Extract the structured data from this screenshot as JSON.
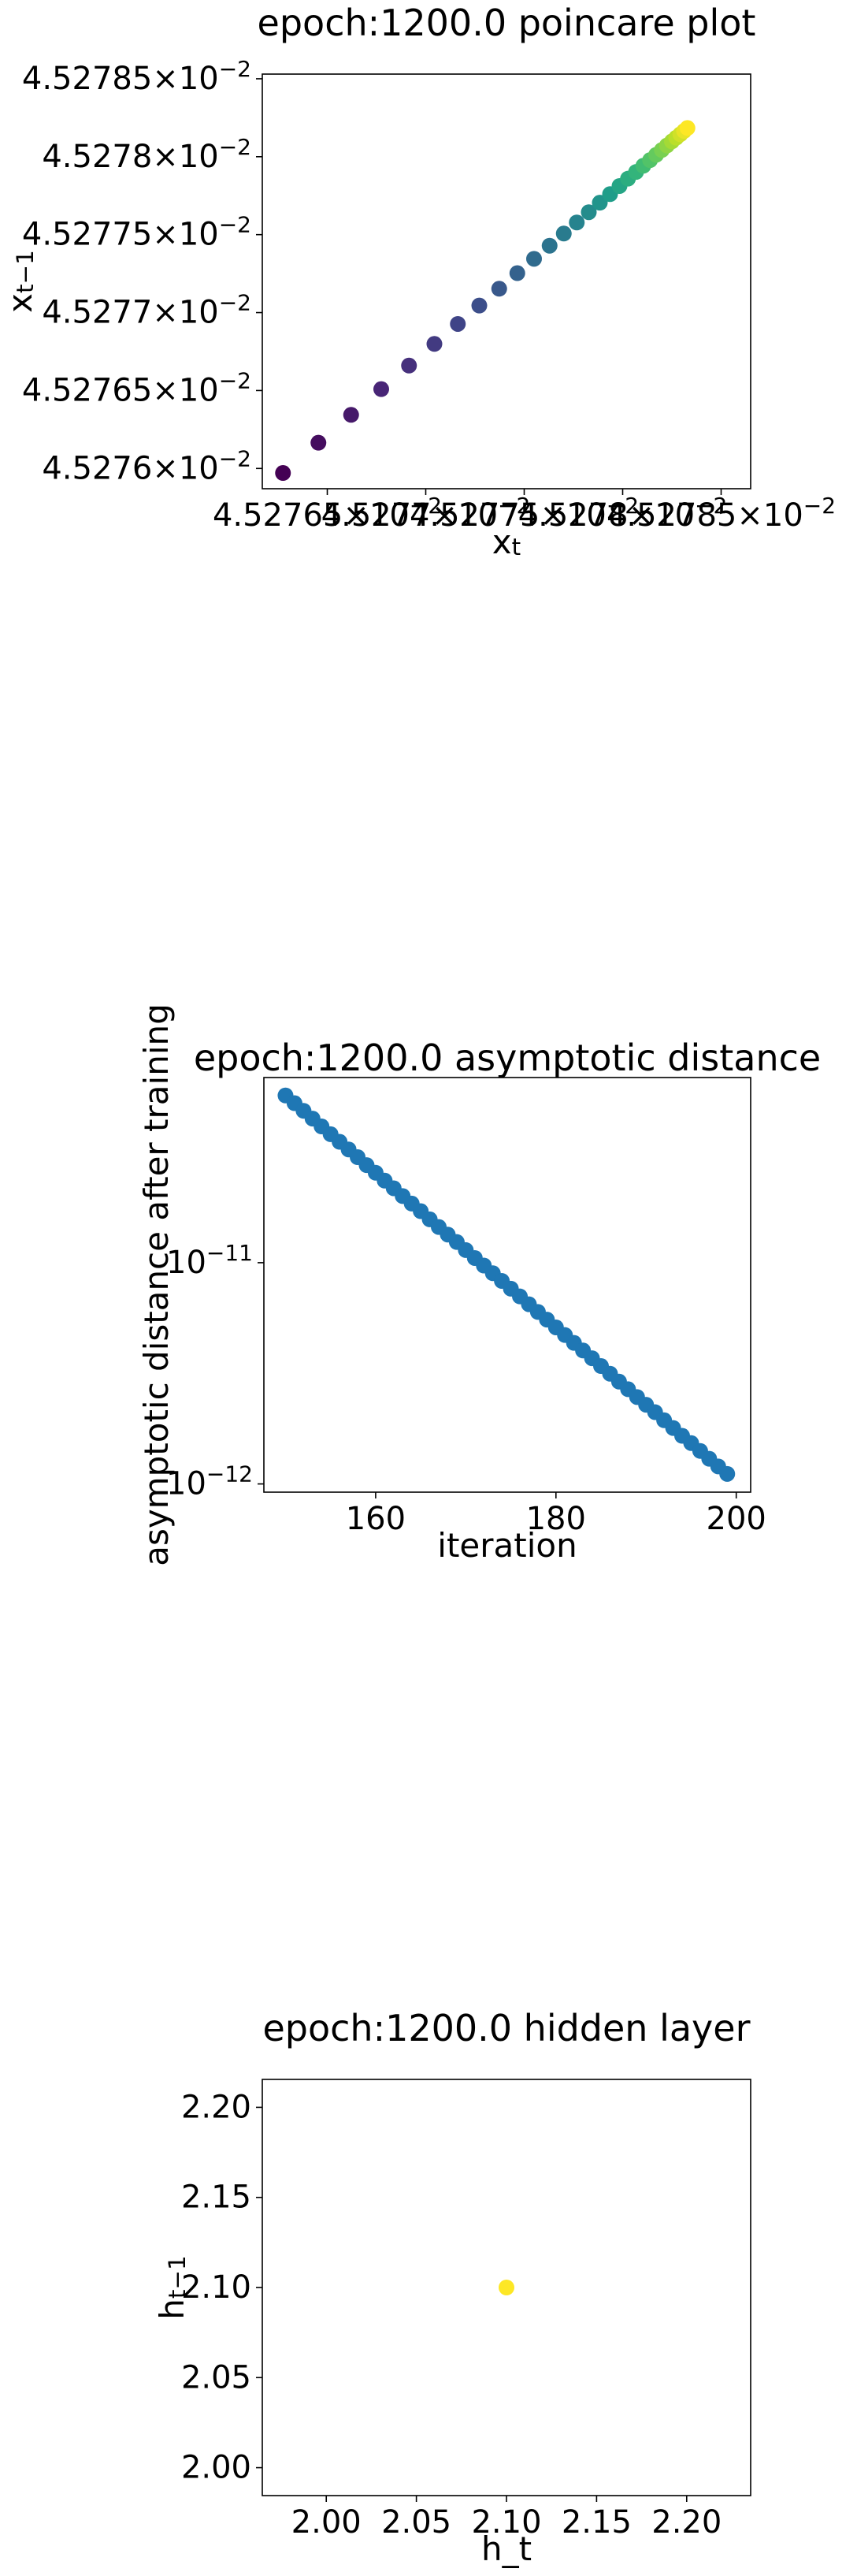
{
  "chart_data": [
    {
      "type": "scatter",
      "title": "epoch:1200.0 poincare plot",
      "xlabel": "x_{t}",
      "ylabel": "x_{t−1}",
      "colormap": "viridis",
      "x": [
        0.045276275,
        0.045276455,
        0.045276621,
        0.045276774,
        0.045276915,
        0.045277044,
        0.045277163,
        0.045277272,
        0.045277373,
        0.045277465,
        0.04527755,
        0.045277629,
        0.045277701,
        0.045277767,
        0.045277828,
        0.045277884,
        0.045277936,
        0.045277984,
        0.045278027,
        0.045278068,
        0.045278105,
        0.045278139,
        0.04527817,
        0.045278199,
        0.045278225,
        0.04527825,
        0.045278272,
        0.045278293,
        0.045278312,
        0.045278329
      ],
      "values": [
        0.045275971,
        0.045276165,
        0.045276344,
        0.045276509,
        0.04527666,
        0.045276799,
        0.045276927,
        0.045277045,
        0.045277153,
        0.045277253,
        0.045277345,
        0.045277429,
        0.045277507,
        0.045277578,
        0.045277644,
        0.045277705,
        0.04527776,
        0.045277812,
        0.045277859,
        0.045277902,
        0.045277942,
        0.045277978,
        0.045278012,
        0.045278043,
        0.045278072,
        0.045278098,
        0.045278122,
        0.045278144,
        0.045278165,
        0.045278184
      ],
      "xlim": [
        0.04527617,
        0.04527865
      ],
      "ylim": [
        0.04527587,
        0.04527853
      ],
      "xticks": [
        {
          "value": 0.0452765,
          "label": "4.52765×10^{−2}"
        },
        {
          "value": 0.045277,
          "label": "4.5277×10^{−2}"
        },
        {
          "value": 0.0452775,
          "label": "4.52775×10^{−2}"
        },
        {
          "value": 0.045278,
          "label": "4.5278×10^{−2}"
        },
        {
          "value": 0.0452785,
          "label": "4.52785×10^{−2}"
        }
      ],
      "yticks": [
        {
          "value": 0.045276,
          "label": "4.5276×10^{−2}"
        },
        {
          "value": 0.0452765,
          "label": "4.52765×10^{−2}"
        },
        {
          "value": 0.045277,
          "label": "4.5277×10^{−2}"
        },
        {
          "value": 0.0452775,
          "label": "4.52775×10^{−2}"
        },
        {
          "value": 0.045278,
          "label": "4.5278×10^{−2}"
        },
        {
          "value": 0.0452785,
          "label": "4.52785×10^{−2}"
        }
      ]
    },
    {
      "type": "scatter",
      "title": "epoch:1200.0 asymptotic distance",
      "xlabel": "iteration",
      "ylabel": "asymptotic distance after training",
      "color": "#1f77b4",
      "yscale": "log",
      "x": [
        150,
        151,
        152,
        153,
        154,
        155,
        156,
        157,
        158,
        159,
        160,
        161,
        162,
        163,
        164,
        165,
        166,
        167,
        168,
        169,
        170,
        171,
        172,
        173,
        174,
        175,
        176,
        177,
        178,
        179,
        180,
        181,
        182,
        183,
        184,
        185,
        186,
        187,
        188,
        189,
        190,
        191,
        192,
        193,
        194,
        195,
        196,
        197,
        198,
        199
      ],
      "values": [
        5.7e-11,
        5.26e-11,
        4.86e-11,
        4.48e-11,
        4.13e-11,
        3.81e-11,
        3.52e-11,
        3.25e-11,
        3e-11,
        2.76e-11,
        2.55e-11,
        2.35e-11,
        2.17e-11,
        2e-11,
        1.85e-11,
        1.71e-11,
        1.57e-11,
        1.45e-11,
        1.34e-11,
        1.24e-11,
        1.14e-11,
        1.05e-11,
        9.71e-12,
        8.96e-12,
        8.27e-12,
        7.63e-12,
        7.04e-12,
        6.49e-12,
        5.99e-12,
        5.53e-12,
        5.1e-12,
        4.71e-12,
        4.34e-12,
        4.01e-12,
        3.7e-12,
        3.41e-12,
        3.15e-12,
        2.9e-12,
        2.68e-12,
        2.47e-12,
        2.28e-12,
        2.11e-12,
        1.94e-12,
        1.79e-12,
        1.65e-12,
        1.53e-12,
        1.41e-12,
        1.3e-12,
        1.2e-12,
        1.11e-12
      ],
      "xlim": [
        147.6,
        201.6
      ],
      "ylim": [
        9.18e-13,
        6.87e-11
      ],
      "xticks": [
        160,
        180,
        200
      ],
      "yticks": [
        {
          "value": 1e-12,
          "label": "10^{−12}"
        },
        {
          "value": 1e-11,
          "label": "10^{−11}"
        }
      ]
    },
    {
      "type": "scatter",
      "title": "epoch:1200.0 hidden layer",
      "xlabel": "h_t",
      "ylabel": "h_{t−1}",
      "color": "#fde725",
      "x": [
        2.1
      ],
      "values": [
        2.1
      ],
      "xlim": [
        1.9645,
        2.2355
      ],
      "ylim": [
        1.9845,
        2.2155
      ],
      "xticks": [
        {
          "value": 2.0,
          "label": "2.00"
        },
        {
          "value": 2.05,
          "label": "2.05"
        },
        {
          "value": 2.1,
          "label": "2.10"
        },
        {
          "value": 2.15,
          "label": "2.15"
        },
        {
          "value": 2.2,
          "label": "2.20"
        }
      ],
      "yticks": [
        {
          "value": 2.0,
          "label": "2.00"
        },
        {
          "value": 2.05,
          "label": "2.05"
        },
        {
          "value": 2.1,
          "label": "2.10"
        },
        {
          "value": 2.15,
          "label": "2.15"
        },
        {
          "value": 2.2,
          "label": "2.20"
        }
      ]
    }
  ]
}
